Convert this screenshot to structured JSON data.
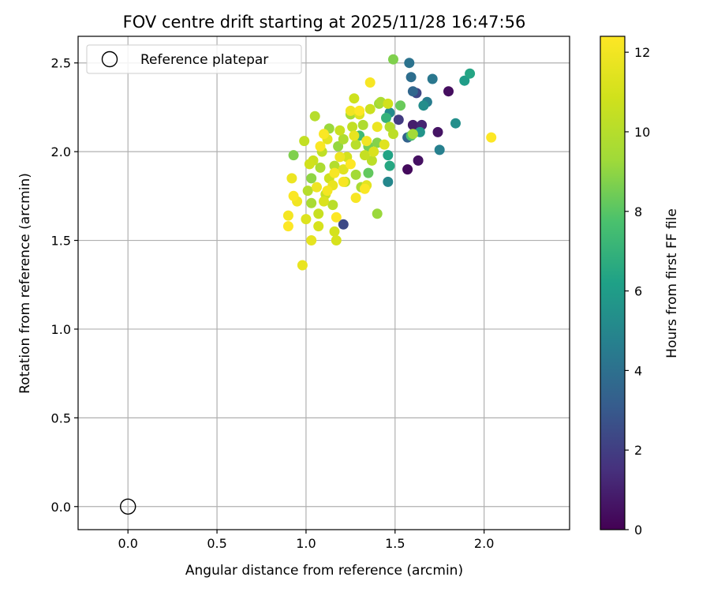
{
  "chart_data": {
    "type": "scatter",
    "title": "FOV centre drift starting at 2025/11/28 16:47:56",
    "xlabel": "Angular distance from reference (arcmin)",
    "ylabel": "Rotation from reference (arcmin)",
    "xlim": [
      -0.28,
      2.48
    ],
    "ylim": [
      -0.13,
      2.65
    ],
    "xticks": [
      "0.0",
      "0.5",
      "1.0",
      "1.5",
      "2.0"
    ],
    "xtick_values": [
      0,
      0.5,
      1.0,
      1.5,
      2.0
    ],
    "yticks": [
      "0.0",
      "0.5",
      "1.0",
      "1.5",
      "2.0",
      "2.5"
    ],
    "ytick_values": [
      0,
      0.5,
      1.0,
      1.5,
      2.0,
      2.5
    ],
    "grid": true,
    "legend": {
      "placement": "top-left",
      "label": "Reference platepar"
    },
    "reference_point": {
      "x": 0.0,
      "y": 0.0
    },
    "colorbar": {
      "label": "Hours from first FF file",
      "range": [
        0,
        12.4
      ],
      "ticks": [
        "0",
        "2",
        "4",
        "6",
        "8",
        "10",
        "12"
      ],
      "tick_values": [
        0,
        2,
        4,
        6,
        8,
        10,
        12
      ],
      "colormap": "viridis"
    },
    "points": [
      {
        "x": 1.57,
        "y": 1.9,
        "h": 0.3
      },
      {
        "x": 1.63,
        "y": 1.95,
        "h": 0.5
      },
      {
        "x": 1.8,
        "y": 2.34,
        "h": 0.4
      },
      {
        "x": 1.74,
        "y": 2.11,
        "h": 0.6
      },
      {
        "x": 1.6,
        "y": 2.15,
        "h": 0.9
      },
      {
        "x": 1.65,
        "y": 2.15,
        "h": 1.1
      },
      {
        "x": 1.52,
        "y": 2.18,
        "h": 1.9
      },
      {
        "x": 1.62,
        "y": 2.33,
        "h": 2.3
      },
      {
        "x": 1.21,
        "y": 1.59,
        "h": 2.4
      },
      {
        "x": 1.57,
        "y": 2.08,
        "h": 3.4
      },
      {
        "x": 1.6,
        "y": 2.34,
        "h": 3.6
      },
      {
        "x": 1.59,
        "y": 2.42,
        "h": 3.9
      },
      {
        "x": 1.58,
        "y": 2.5,
        "h": 4.1
      },
      {
        "x": 1.71,
        "y": 2.41,
        "h": 4.3
      },
      {
        "x": 1.68,
        "y": 2.28,
        "h": 4.5
      },
      {
        "x": 1.75,
        "y": 2.01,
        "h": 4.7
      },
      {
        "x": 1.46,
        "y": 1.83,
        "h": 5.0
      },
      {
        "x": 1.47,
        "y": 2.22,
        "h": 5.2
      },
      {
        "x": 1.66,
        "y": 2.26,
        "h": 5.3
      },
      {
        "x": 1.84,
        "y": 2.16,
        "h": 5.4
      },
      {
        "x": 1.64,
        "y": 2.11,
        "h": 5.6
      },
      {
        "x": 1.89,
        "y": 2.4,
        "h": 6.0
      },
      {
        "x": 1.92,
        "y": 2.44,
        "h": 6.4
      },
      {
        "x": 1.46,
        "y": 1.98,
        "h": 6.3
      },
      {
        "x": 1.47,
        "y": 1.92,
        "h": 6.5
      },
      {
        "x": 1.45,
        "y": 2.19,
        "h": 7.0
      },
      {
        "x": 1.3,
        "y": 2.09,
        "h": 7.4
      },
      {
        "x": 1.59,
        "y": 2.09,
        "h": 7.8
      },
      {
        "x": 1.35,
        "y": 1.88,
        "h": 8.2
      },
      {
        "x": 1.53,
        "y": 2.26,
        "h": 8.3
      },
      {
        "x": 1.35,
        "y": 2.03,
        "h": 8.5
      },
      {
        "x": 1.49,
        "y": 2.52,
        "h": 8.7
      },
      {
        "x": 0.93,
        "y": 1.98,
        "h": 8.7
      },
      {
        "x": 1.4,
        "y": 2.05,
        "h": 8.8
      },
      {
        "x": 1.03,
        "y": 1.85,
        "h": 9.0
      },
      {
        "x": 1.18,
        "y": 2.03,
        "h": 9.1
      },
      {
        "x": 1.13,
        "y": 2.13,
        "h": 9.2
      },
      {
        "x": 1.4,
        "y": 1.65,
        "h": 9.2
      },
      {
        "x": 1.41,
        "y": 2.27,
        "h": 9.3
      },
      {
        "x": 1.28,
        "y": 1.87,
        "h": 9.4
      },
      {
        "x": 1.6,
        "y": 2.1,
        "h": 9.4
      },
      {
        "x": 1.25,
        "y": 2.21,
        "h": 9.5
      },
      {
        "x": 1.31,
        "y": 1.8,
        "h": 9.6
      },
      {
        "x": 1.03,
        "y": 1.71,
        "h": 9.6
      },
      {
        "x": 1.42,
        "y": 2.28,
        "h": 9.7
      },
      {
        "x": 1.08,
        "y": 1.91,
        "h": 9.7
      },
      {
        "x": 1.32,
        "y": 2.15,
        "h": 9.8
      },
      {
        "x": 1.21,
        "y": 2.07,
        "h": 9.8
      },
      {
        "x": 1.47,
        "y": 2.14,
        "h": 9.9
      },
      {
        "x": 1.16,
        "y": 1.92,
        "h": 9.9
      },
      {
        "x": 1.05,
        "y": 2.2,
        "h": 10.0
      },
      {
        "x": 1.01,
        "y": 1.78,
        "h": 10.0
      },
      {
        "x": 1.28,
        "y": 2.04,
        "h": 10.1
      },
      {
        "x": 1.15,
        "y": 1.7,
        "h": 10.1
      },
      {
        "x": 1.37,
        "y": 1.95,
        "h": 10.2
      },
      {
        "x": 1.49,
        "y": 2.1,
        "h": 10.2
      },
      {
        "x": 1.09,
        "y": 2.0,
        "h": 10.3
      },
      {
        "x": 1.22,
        "y": 1.83,
        "h": 10.3
      },
      {
        "x": 1.26,
        "y": 2.14,
        "h": 10.4
      },
      {
        "x": 0.99,
        "y": 2.06,
        "h": 10.4
      },
      {
        "x": 1.11,
        "y": 1.76,
        "h": 10.5
      },
      {
        "x": 1.33,
        "y": 1.98,
        "h": 10.5
      },
      {
        "x": 1.19,
        "y": 2.12,
        "h": 10.6
      },
      {
        "x": 1.07,
        "y": 1.65,
        "h": 10.6
      },
      {
        "x": 1.36,
        "y": 2.24,
        "h": 10.7
      },
      {
        "x": 1.04,
        "y": 1.95,
        "h": 10.7
      },
      {
        "x": 1.27,
        "y": 2.3,
        "h": 10.8
      },
      {
        "x": 1.13,
        "y": 1.85,
        "h": 10.8
      },
      {
        "x": 1.46,
        "y": 2.27,
        "h": 10.9
      },
      {
        "x": 1.02,
        "y": 1.93,
        "h": 10.9
      },
      {
        "x": 1.23,
        "y": 1.97,
        "h": 11.0
      },
      {
        "x": 1.16,
        "y": 1.55,
        "h": 11.0
      },
      {
        "x": 1.07,
        "y": 1.58,
        "h": 11.1
      },
      {
        "x": 1.17,
        "y": 1.5,
        "h": 11.1
      },
      {
        "x": 1.38,
        "y": 2.0,
        "h": 11.2
      },
      {
        "x": 1.1,
        "y": 1.72,
        "h": 11.2
      },
      {
        "x": 1.3,
        "y": 2.21,
        "h": 11.3
      },
      {
        "x": 1.0,
        "y": 1.62,
        "h": 11.3
      },
      {
        "x": 1.21,
        "y": 1.9,
        "h": 11.4
      },
      {
        "x": 1.44,
        "y": 2.04,
        "h": 11.4
      },
      {
        "x": 1.12,
        "y": 2.07,
        "h": 11.5
      },
      {
        "x": 1.34,
        "y": 1.81,
        "h": 11.5
      },
      {
        "x": 1.03,
        "y": 1.5,
        "h": 11.6
      },
      {
        "x": 1.27,
        "y": 2.09,
        "h": 11.6
      },
      {
        "x": 0.98,
        "y": 1.36,
        "h": 11.7
      },
      {
        "x": 1.15,
        "y": 1.81,
        "h": 11.7
      },
      {
        "x": 1.4,
        "y": 2.14,
        "h": 11.8
      },
      {
        "x": 0.92,
        "y": 1.85,
        "h": 11.8
      },
      {
        "x": 1.19,
        "y": 1.97,
        "h": 11.9
      },
      {
        "x": 1.06,
        "y": 1.8,
        "h": 11.9
      },
      {
        "x": 1.34,
        "y": 2.06,
        "h": 12.0
      },
      {
        "x": 0.95,
        "y": 1.72,
        "h": 12.0
      },
      {
        "x": 1.25,
        "y": 2.23,
        "h": 12.0
      },
      {
        "x": 1.12,
        "y": 1.78,
        "h": 12.1
      },
      {
        "x": 0.9,
        "y": 1.64,
        "h": 12.1
      },
      {
        "x": 1.28,
        "y": 1.74,
        "h": 12.2
      },
      {
        "x": 1.21,
        "y": 1.83,
        "h": 12.2
      },
      {
        "x": 1.36,
        "y": 2.39,
        "h": 12.2
      },
      {
        "x": 1.1,
        "y": 2.1,
        "h": 12.3
      },
      {
        "x": 0.93,
        "y": 1.75,
        "h": 12.3
      },
      {
        "x": 1.33,
        "y": 1.79,
        "h": 12.3
      },
      {
        "x": 1.17,
        "y": 1.63,
        "h": 12.4
      },
      {
        "x": 1.3,
        "y": 2.23,
        "h": 12.4
      },
      {
        "x": 0.9,
        "y": 1.58,
        "h": 12.4
      },
      {
        "x": 1.25,
        "y": 1.93,
        "h": 12.4
      },
      {
        "x": 2.04,
        "y": 2.08,
        "h": 12.4
      },
      {
        "x": 1.08,
        "y": 2.03,
        "h": 12.3
      },
      {
        "x": 1.16,
        "y": 1.88,
        "h": 12.2
      }
    ]
  }
}
